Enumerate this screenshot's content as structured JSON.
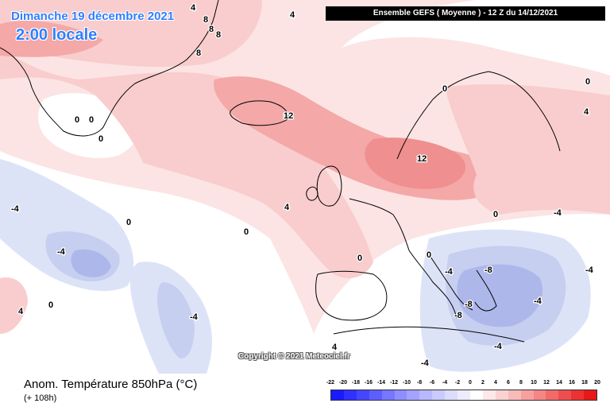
{
  "header": {
    "date": "Dimanche 19 décembre 2021",
    "time": "2:00 locale",
    "run": "Ensemble GEFS  ( Moyenne )  - 12 Z du 14/12/2021"
  },
  "map": {
    "copyright": "Copyright © 2021 Meteociel.fr",
    "labels": [
      "4",
      "4",
      "8",
      "8",
      "8",
      "8",
      "0",
      "0",
      "0",
      "12",
      "12",
      "0",
      "0",
      "4",
      "4",
      "0",
      "-4",
      "-4",
      "0",
      "0",
      "-4",
      "4",
      "0",
      "-4",
      "0",
      "-4",
      "-4",
      "-8",
      "-8",
      "-8",
      "-4",
      "4",
      "0",
      "-4",
      "-4"
    ],
    "colors": {
      "ocean_base": "#fce4e4",
      "warm_1": "#f9cdcd",
      "warm_2": "#f4a8a8",
      "warm_3": "#ef8f8f",
      "neutral": "#ffffff",
      "cool_1": "#dde3f7",
      "cool_2": "#c7cff0",
      "cool_3": "#aeb7ea",
      "land_outline": "#000000"
    }
  },
  "footer": {
    "title": "Anom. Température 850hPa (°C)",
    "lead": "(+ 108h)"
  },
  "legend": {
    "ticks": [
      "-22",
      "-20",
      "-18",
      "-16",
      "-14",
      "-12",
      "-10",
      "-8",
      "-6",
      "-4",
      "-2",
      "0",
      "2",
      "4",
      "6",
      "8",
      "10",
      "12",
      "14",
      "16",
      "18",
      "20"
    ],
    "colors": [
      "#1a1aff",
      "#3030ff",
      "#4646ff",
      "#5e5eff",
      "#7676ff",
      "#8e8eff",
      "#a4a4ff",
      "#b8b8ff",
      "#cacaff",
      "#dcdcfb",
      "#ececfd",
      "#ffffff",
      "#fde8e8",
      "#fbd2d2",
      "#f9baba",
      "#f6a0a0",
      "#f48686",
      "#f26a6a",
      "#ef4e4e",
      "#ec3232",
      "#e91818"
    ]
  }
}
